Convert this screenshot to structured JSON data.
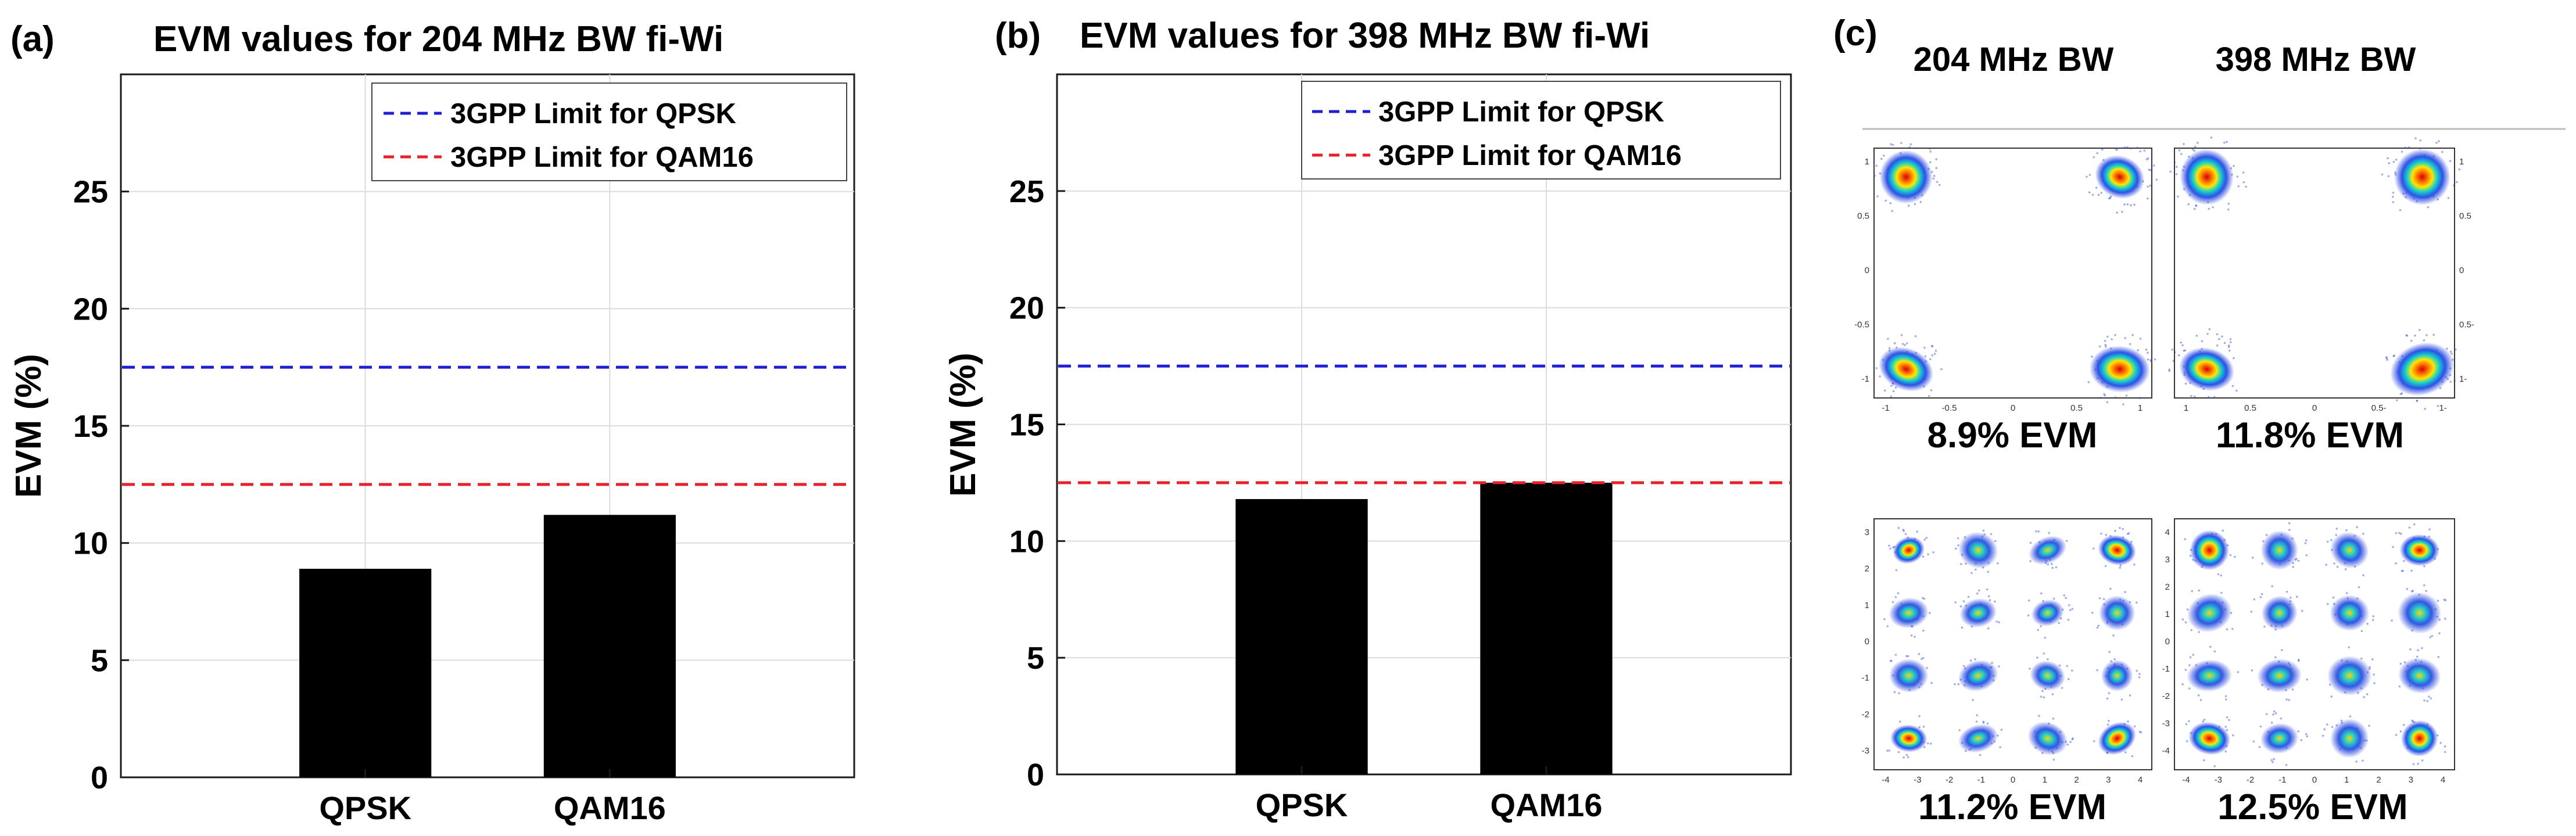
{
  "panels": {
    "a": {
      "label": "(a)"
    },
    "b": {
      "label": "(b)"
    },
    "c": {
      "label": "(c)",
      "col_headers": [
        "204 MHz BW",
        "398 MHz BW"
      ],
      "constellations": [
        {
          "modulation": "QPSK",
          "bandwidth": "204 MHz BW",
          "caption": "8.9% EVM",
          "x_ticks": [
            "-1",
            "-0.5",
            "0",
            "0.5",
            "1"
          ],
          "y_ticks": [
            "1",
            "0.5",
            "0",
            "-0.5",
            "-1"
          ]
        },
        {
          "modulation": "QPSK",
          "bandwidth": "398 MHz BW",
          "caption": "11.8% EVM",
          "x_ticks": [
            "1",
            "0.5",
            "0",
            "0.5-",
            "1-"
          ],
          "y_ticks": [
            "1",
            "0.5",
            "0",
            "0.5-",
            "1-"
          ]
        },
        {
          "modulation": "QAM16",
          "bandwidth": "204 MHz BW",
          "caption": "11.2% EVM",
          "x_ticks": [
            "-4",
            "-3",
            "-2",
            "-1",
            "0",
            "1",
            "2",
            "3",
            "4"
          ],
          "y_ticks": [
            "3",
            "2",
            "1",
            "0",
            "-1",
            "-2",
            "-3"
          ]
        },
        {
          "modulation": "QAM16",
          "bandwidth": "398 MHz BW",
          "caption": "12.5% EVM",
          "x_ticks": [
            "-4",
            "-3",
            "-2",
            "-1",
            "0",
            "1",
            "2",
            "3",
            "4"
          ],
          "y_ticks": [
            "4",
            "3",
            "2",
            "1",
            "0",
            "-1",
            "-2",
            "-3",
            "-4"
          ]
        }
      ]
    }
  },
  "colors": {
    "bar": "#000000",
    "qpsk_limit": "#1f1fd6",
    "qam16_limit": "#e8202a",
    "grid": "#dcdcdc"
  },
  "chart_data": [
    {
      "type": "bar",
      "title": "EVM values for 204 MHz BW fi-Wi",
      "xlabel": "",
      "ylabel": "EVM (%)",
      "categories": [
        "QPSK",
        "QAM16"
      ],
      "values": [
        8.9,
        11.2
      ],
      "ylim": [
        0,
        30
      ],
      "yticks": [
        0,
        5,
        10,
        15,
        20,
        25
      ],
      "grid": true,
      "reference_lines": [
        {
          "name": "3GPP Limit for QPSK",
          "value": 17.5,
          "style": "dashed",
          "color": "blue"
        },
        {
          "name": "3GPP Limit for QAM16",
          "value": 12.5,
          "style": "dashed",
          "color": "red"
        }
      ],
      "legend_position": "top-right"
    },
    {
      "type": "bar",
      "title": "EVM values for 398 MHz BW fi-Wi",
      "xlabel": "",
      "ylabel": "EVM (%)",
      "categories": [
        "QPSK",
        "QAM16"
      ],
      "values": [
        11.8,
        12.5
      ],
      "ylim": [
        0,
        30
      ],
      "yticks": [
        0,
        5,
        10,
        15,
        20,
        25
      ],
      "grid": true,
      "reference_lines": [
        {
          "name": "3GPP Limit for QPSK",
          "value": 17.5,
          "style": "dashed",
          "color": "blue"
        },
        {
          "name": "3GPP Limit for QAM16",
          "value": 12.5,
          "style": "dashed",
          "color": "red"
        }
      ],
      "legend_position": "top-right"
    }
  ]
}
